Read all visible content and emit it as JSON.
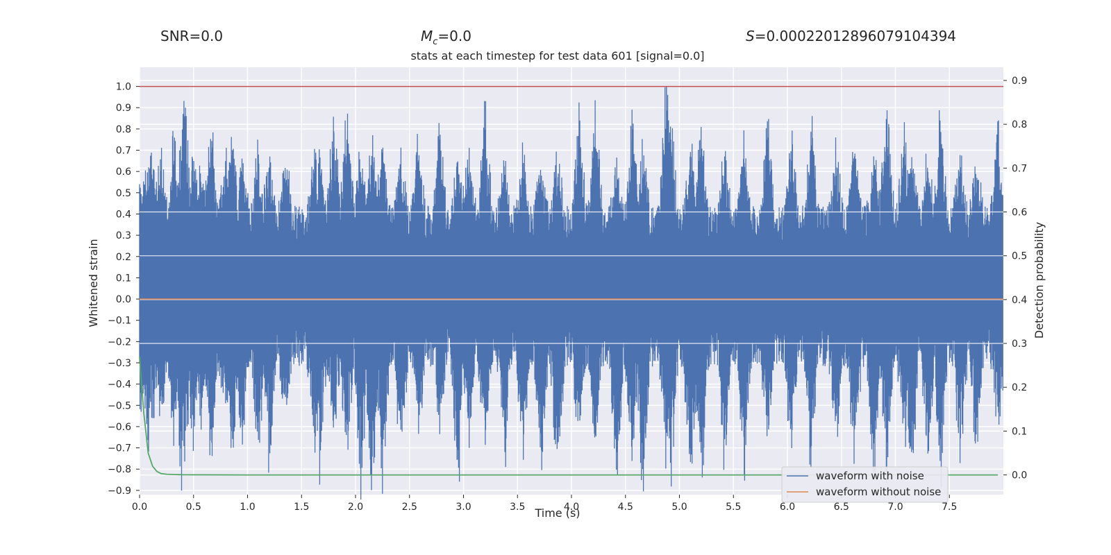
{
  "header": {
    "snr": "SNR=0.0",
    "mc": {
      "symbol": "M",
      "subscript": "c",
      "value": "=0.0"
    },
    "s": {
      "symbol": "S",
      "value": "=0.00022012896079104394"
    }
  },
  "chart_data": {
    "type": "line",
    "title": "stats at each timestep for test data 601 [signal=0.0]",
    "xlabel": "Time (s)",
    "ylabel": "Whitened strain",
    "y2label": "Detection probability",
    "xlim": [
      0,
      8
    ],
    "ylim": [
      -0.92,
      1.09
    ],
    "y2lim": [
      -0.045,
      0.93
    ],
    "xticks": [
      "0.0",
      "0.5",
      "1.0",
      "1.5",
      "2.0",
      "2.5",
      "3.0",
      "3.5",
      "4.0",
      "4.5",
      "5.0",
      "5.5",
      "6.0",
      "6.5",
      "7.0",
      "7.5"
    ],
    "yticks": [
      "1.0",
      "0.9",
      "0.8",
      "0.7",
      "0.6",
      "0.5",
      "0.4",
      "0.3",
      "0.2",
      "0.1",
      "0.0",
      "−0.1",
      "−0.2",
      "−0.3",
      "−0.4",
      "−0.5",
      "−0.6",
      "−0.7",
      "−0.8",
      "−0.9"
    ],
    "y2ticks": [
      "0.9",
      "0.8",
      "0.7",
      "0.6",
      "0.5",
      "0.4",
      "0.3",
      "0.2",
      "0.1",
      "0.0"
    ],
    "grid": true,
    "legend_position": "lower-right",
    "threshold": {
      "value": 1.0,
      "axis": "left",
      "color": "#c44e52"
    },
    "series": [
      {
        "name": "waveform with noise",
        "color": "#4c72b0",
        "axis": "left",
        "band": [
          -0.02,
          0.19
        ],
        "peaks": [
          {
            "x": 0.02,
            "top": 0.45,
            "bottom": -0.34
          },
          {
            "x": 0.08,
            "top": 0.48,
            "bottom": -0.52
          },
          {
            "x": 0.12,
            "top": 0.56,
            "bottom": -0.38
          },
          {
            "x": 0.2,
            "top": 0.52,
            "bottom": -0.43
          },
          {
            "x": 0.32,
            "top": 0.65,
            "bottom": -0.45
          },
          {
            "x": 0.39,
            "top": 0.6,
            "bottom": -0.69
          },
          {
            "x": 0.42,
            "top": 0.86,
            "bottom": -0.55
          },
          {
            "x": 0.5,
            "top": 0.55,
            "bottom": -0.5
          },
          {
            "x": 0.57,
            "top": 0.48,
            "bottom": -0.44
          },
          {
            "x": 0.66,
            "top": 0.69,
            "bottom": -0.6
          },
          {
            "x": 0.8,
            "top": 0.53,
            "bottom": -0.41
          },
          {
            "x": 0.86,
            "top": 0.7,
            "bottom": -0.55
          },
          {
            "x": 0.95,
            "top": 0.47,
            "bottom": -0.58
          },
          {
            "x": 1.1,
            "top": 0.55,
            "bottom": -0.52
          },
          {
            "x": 1.2,
            "top": 0.5,
            "bottom": -0.58
          },
          {
            "x": 1.35,
            "top": 0.53,
            "bottom": -0.44
          },
          {
            "x": 1.62,
            "top": 0.6,
            "bottom": -0.63
          },
          {
            "x": 1.67,
            "top": 0.52,
            "bottom": -0.62
          },
          {
            "x": 1.8,
            "top": 0.78,
            "bottom": -0.45
          },
          {
            "x": 1.92,
            "top": 0.75,
            "bottom": -0.56
          },
          {
            "x": 2.05,
            "top": 0.57,
            "bottom": -0.67
          },
          {
            "x": 2.15,
            "top": 0.62,
            "bottom": -0.83
          },
          {
            "x": 2.25,
            "top": 0.56,
            "bottom": -0.69
          },
          {
            "x": 2.42,
            "top": 0.51,
            "bottom": -0.54
          },
          {
            "x": 2.58,
            "top": 0.62,
            "bottom": -0.48
          },
          {
            "x": 2.78,
            "top": 0.75,
            "bottom": -0.45
          },
          {
            "x": 2.95,
            "top": 0.52,
            "bottom": -0.71
          },
          {
            "x": 3.05,
            "top": 0.58,
            "bottom": -0.52
          },
          {
            "x": 3.2,
            "top": 0.77,
            "bottom": -0.57
          },
          {
            "x": 3.38,
            "top": 0.48,
            "bottom": -0.6
          },
          {
            "x": 3.55,
            "top": 0.52,
            "bottom": -0.57
          },
          {
            "x": 3.72,
            "top": 0.5,
            "bottom": -0.63
          },
          {
            "x": 3.87,
            "top": 0.53,
            "bottom": -0.68
          },
          {
            "x": 4.07,
            "top": 0.75,
            "bottom": -0.47
          },
          {
            "x": 4.22,
            "top": 0.77,
            "bottom": -0.52
          },
          {
            "x": 4.42,
            "top": 0.52,
            "bottom": -0.72
          },
          {
            "x": 4.56,
            "top": 0.75,
            "bottom": -0.63
          },
          {
            "x": 4.66,
            "top": 0.57,
            "bottom": -0.8
          },
          {
            "x": 4.88,
            "top": 1.0,
            "bottom": -0.6
          },
          {
            "x": 4.92,
            "top": 0.75,
            "bottom": -0.77
          },
          {
            "x": 5.1,
            "top": 0.62,
            "bottom": -0.7
          },
          {
            "x": 5.2,
            "top": 0.68,
            "bottom": -0.71
          },
          {
            "x": 5.42,
            "top": 0.6,
            "bottom": -0.62
          },
          {
            "x": 5.6,
            "top": 0.64,
            "bottom": -0.73
          },
          {
            "x": 5.82,
            "top": 0.76,
            "bottom": -0.55
          },
          {
            "x": 6.04,
            "top": 0.62,
            "bottom": -0.58
          },
          {
            "x": 6.22,
            "top": 0.72,
            "bottom": -0.64
          },
          {
            "x": 6.45,
            "top": 0.58,
            "bottom": -0.55
          },
          {
            "x": 6.62,
            "top": 0.63,
            "bottom": -0.6
          },
          {
            "x": 6.8,
            "top": 0.55,
            "bottom": -0.68
          },
          {
            "x": 6.92,
            "top": 0.81,
            "bottom": -0.6
          },
          {
            "x": 7.08,
            "top": 0.62,
            "bottom": -0.56
          },
          {
            "x": 7.15,
            "top": 0.55,
            "bottom": -0.72
          },
          {
            "x": 7.3,
            "top": 0.57,
            "bottom": -0.55
          },
          {
            "x": 7.42,
            "top": 0.76,
            "bottom": -0.63
          },
          {
            "x": 7.6,
            "top": 0.55,
            "bottom": -0.61
          },
          {
            "x": 7.75,
            "top": 0.5,
            "bottom": -0.52
          },
          {
            "x": 7.95,
            "top": 0.69,
            "bottom": -0.4
          }
        ]
      },
      {
        "name": "waveform without noise",
        "color": "#dd8452",
        "axis": "left",
        "x": [
          0,
          8
        ],
        "y": [
          0,
          0
        ]
      },
      {
        "name": "",
        "color": "#55a868",
        "axis": "right",
        "x": [
          0.0,
          0.02,
          0.04,
          0.08,
          0.12,
          0.16,
          0.2,
          0.25,
          0.3,
          0.4,
          1.0,
          2.0,
          4.0,
          6.0,
          7.95
        ],
        "y": [
          0.27,
          0.2,
          0.14,
          0.05,
          0.02,
          0.008,
          0.003,
          0.0015,
          0.001,
          0.0005,
          0.0,
          0.0,
          0.0,
          0.0,
          0.0
        ]
      }
    ]
  }
}
